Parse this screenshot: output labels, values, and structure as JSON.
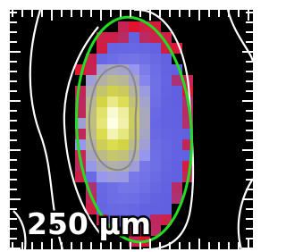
{
  "label": "250 μm"
}
